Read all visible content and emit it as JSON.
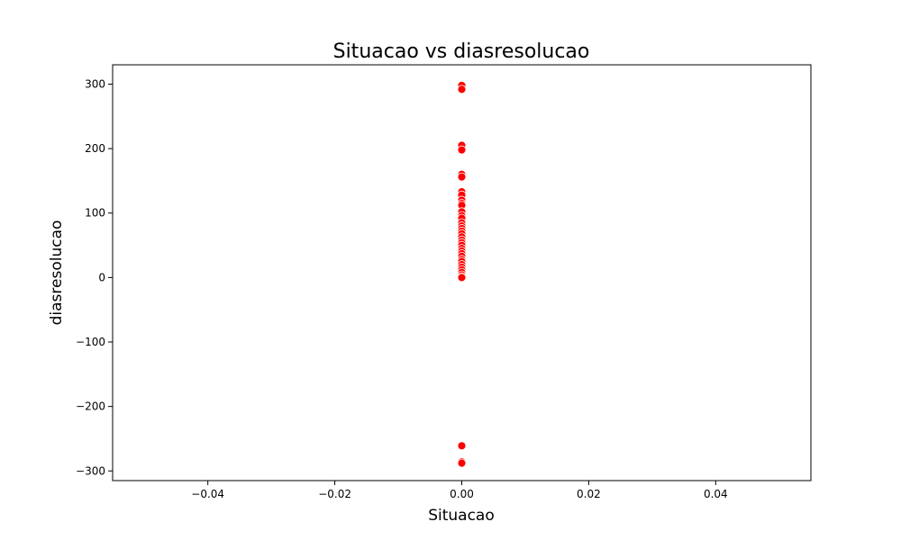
{
  "chart_data": {
    "type": "scatter",
    "title": "Situacao vs diasresolucao",
    "xlabel": "Situacao",
    "ylabel": "diasresolucao",
    "xlim": [
      -0.055,
      0.055
    ],
    "ylim": [
      -315,
      330
    ],
    "xticks": [
      -0.04,
      -0.02,
      0.0,
      0.02,
      0.04
    ],
    "xtick_labels": [
      "−0.04",
      "−0.02",
      "0.00",
      "0.02",
      "0.04"
    ],
    "yticks": [
      -300,
      -200,
      -100,
      0,
      100,
      200,
      300
    ],
    "ytick_labels": [
      "−300",
      "−200",
      "−100",
      "0",
      "100",
      "200",
      "300"
    ],
    "grid": false,
    "marker_color": "#ff0000",
    "marker_edge_color": "#ffffff",
    "series": [
      {
        "x": [
          0,
          0,
          0,
          0,
          0,
          0,
          0,
          0,
          0,
          0,
          0,
          0,
          0,
          0,
          0,
          0,
          0,
          0,
          0,
          0,
          0,
          0,
          0,
          0,
          0,
          0,
          0,
          0,
          0,
          0,
          0,
          0,
          0,
          0,
          0,
          0,
          0,
          0,
          0
        ],
        "y": [
          298,
          292,
          205,
          198,
          160,
          156,
          133,
          128,
          120,
          115,
          112,
          102,
          96,
          92,
          85,
          80,
          76,
          72,
          68,
          63,
          58,
          54,
          50,
          45,
          41,
          37,
          33,
          28,
          25,
          20,
          16,
          12,
          8,
          4,
          1,
          0,
          -261,
          -286,
          -288
        ]
      }
    ]
  }
}
